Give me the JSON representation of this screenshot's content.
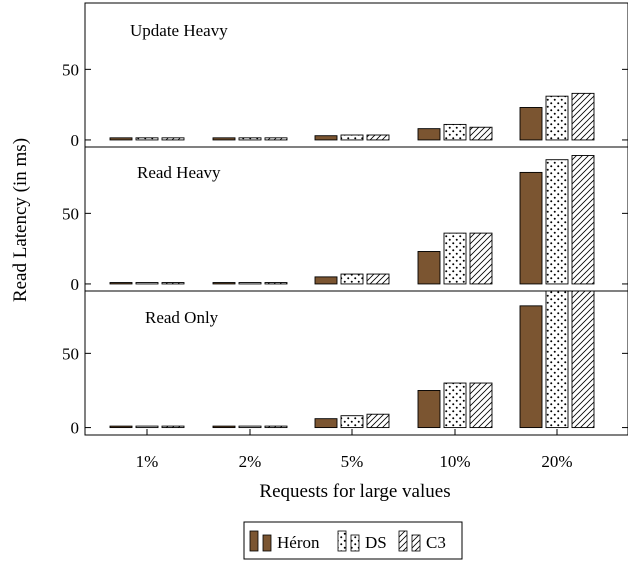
{
  "chart_data": {
    "type": "bar",
    "xlabel": "Requests for large values",
    "ylabel": "Read Latency (in ms)",
    "categories": [
      "1%",
      "2%",
      "5%",
      "10%",
      "20%"
    ],
    "yticks": [
      0,
      50
    ],
    "legend_position": "bottom-center",
    "series_styles": [
      {
        "name": "Héron",
        "fill": "#7b5531",
        "pattern": "solid"
      },
      {
        "name": "DS",
        "fill": "#ffffff",
        "pattern": "dots"
      },
      {
        "name": "C3",
        "fill": "#ffffff",
        "pattern": "north-east-lines"
      }
    ],
    "panels": [
      {
        "title": "Update Heavy",
        "ylim": [
          -5,
          97
        ],
        "series": [
          {
            "name": "Héron",
            "values": [
              1.5,
              1.5,
              3,
              8,
              23
            ]
          },
          {
            "name": "DS",
            "values": [
              1.5,
              1.5,
              3.5,
              11,
              31
            ]
          },
          {
            "name": "C3",
            "values": [
              1.5,
              1.5,
              3.5,
              9,
              33
            ]
          }
        ]
      },
      {
        "title": "Read Heavy",
        "ylim": [
          -5,
          97
        ],
        "series": [
          {
            "name": "Héron",
            "values": [
              1,
              1,
              5,
              23,
              79
            ]
          },
          {
            "name": "DS",
            "values": [
              1,
              1,
              7,
              36,
              88
            ]
          },
          {
            "name": "C3",
            "values": [
              1,
              1,
              7,
              36,
              91
            ]
          }
        ]
      },
      {
        "title": "Read Only",
        "ylim": [
          -5,
          92
        ],
        "series": [
          {
            "name": "Héron",
            "values": [
              1,
              1,
              6,
              25,
              82
            ]
          },
          {
            "name": "DS",
            "values": [
              1,
              1,
              8,
              30,
              92
            ]
          },
          {
            "name": "C3",
            "values": [
              1,
              1,
              9,
              30,
              92
            ]
          }
        ]
      }
    ]
  }
}
